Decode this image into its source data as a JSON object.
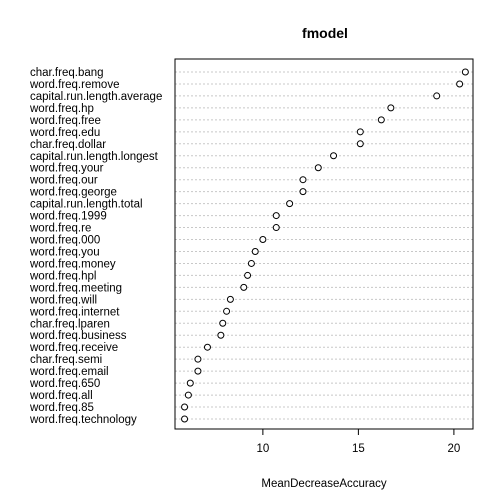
{
  "chart_data": {
    "type": "scatter",
    "title": "fmodel",
    "xlabel": "MeanDecreaseAccuracy",
    "ylabel": "",
    "xlim": [
      5.4,
      21.0
    ],
    "xticks": [
      10,
      15,
      20
    ],
    "grid": true,
    "categories": [
      "char.freq.bang",
      "word.freq.remove",
      "capital.run.length.average",
      "word.freq.hp",
      "word.freq.free",
      "word.freq.edu",
      "char.freq.dollar",
      "capital.run.length.longest",
      "word.freq.your",
      "word.freq.our",
      "word.freq.george",
      "capital.run.length.total",
      "word.freq.1999",
      "word.freq.re",
      "word.freq.000",
      "word.freq.you",
      "word.freq.money",
      "word.freq.hpl",
      "word.freq.meeting",
      "word.freq.will",
      "word.freq.internet",
      "char.freq.lparen",
      "word.freq.business",
      "word.freq.receive",
      "char.freq.semi",
      "word.freq.email",
      "word.freq.650",
      "word.freq.all",
      "word.freq.85",
      "word.freq.technology"
    ],
    "values": [
      20.6,
      20.3,
      19.1,
      16.7,
      16.2,
      15.1,
      15.1,
      13.7,
      12.9,
      12.1,
      12.1,
      11.4,
      10.7,
      10.7,
      10.0,
      9.6,
      9.4,
      9.2,
      9.0,
      8.3,
      8.1,
      7.9,
      7.8,
      7.1,
      6.6,
      6.6,
      6.2,
      6.1,
      5.9,
      5.9
    ]
  }
}
